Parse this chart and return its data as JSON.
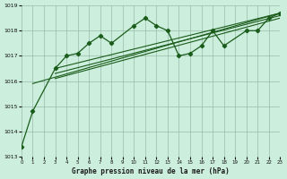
{
  "title": "Graphe pression niveau de la mer (hPa)",
  "background_color": "#cceedd",
  "grid_color": "#99bbaa",
  "line_color": "#1a5c1a",
  "ylim": [
    1013,
    1019
  ],
  "xlim": [
    0,
    23
  ],
  "yticks": [
    1013,
    1014,
    1015,
    1016,
    1017,
    1018,
    1019
  ],
  "xticks": [
    0,
    1,
    2,
    3,
    4,
    5,
    6,
    7,
    8,
    9,
    10,
    11,
    12,
    13,
    14,
    15,
    16,
    17,
    18,
    19,
    20,
    21,
    22,
    23
  ],
  "main_x": [
    0,
    1,
    3,
    4,
    5,
    6,
    7,
    8,
    10,
    11,
    12,
    13,
    14,
    15,
    16,
    17,
    18,
    20,
    21,
    22,
    23
  ],
  "main_y": [
    1013.4,
    1014.8,
    1016.5,
    1017.0,
    1017.1,
    1017.5,
    1017.8,
    1017.5,
    1018.2,
    1018.5,
    1018.2,
    1018.0,
    1017.0,
    1017.1,
    1017.4,
    1018.0,
    1017.4,
    1018.0,
    1018.0,
    1018.5,
    1018.7
  ],
  "trend1_x": [
    1,
    23
  ],
  "trend1_y": [
    1015.9,
    1018.7
  ],
  "trend2_x": [
    3,
    23
  ],
  "trend2_y": [
    1016.5,
    1018.7
  ],
  "trend3_x": [
    3,
    23
  ],
  "trend3_y": [
    1016.3,
    1018.6
  ],
  "trend4_x": [
    3,
    23
  ],
  "trend4_y": [
    1016.1,
    1018.5
  ]
}
